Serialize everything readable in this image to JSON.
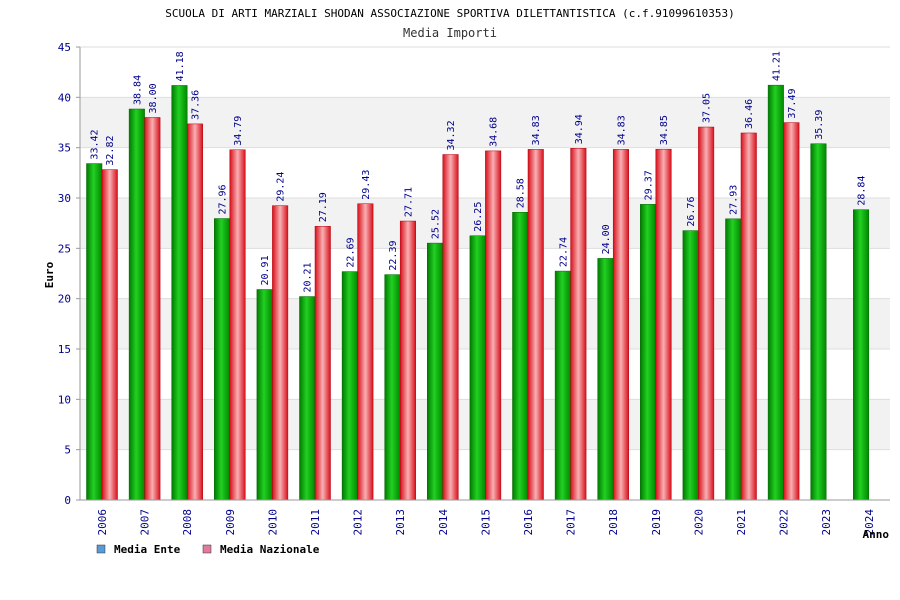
{
  "chart_data": {
    "type": "bar",
    "title": "SCUOLA DI ARTI MARZIALI SHODAN ASSOCIAZIONE SPORTIVA DILETTANTISTICA (c.f.91099610353)",
    "subtitle": "Media Importi",
    "xlabel": "Anno",
    "ylabel": "Euro",
    "ylim": [
      0,
      45
    ],
    "yticks": [
      "0",
      "5",
      "10",
      "15",
      "20",
      "25",
      "30",
      "35",
      "40",
      "45"
    ],
    "grid": true,
    "legend_position": "bottom-left",
    "categories": [
      "2006",
      "2007",
      "2008",
      "2009",
      "2010",
      "2011",
      "2012",
      "2013",
      "2014",
      "2015",
      "2016",
      "2017",
      "2018",
      "2019",
      "2020",
      "2021",
      "2022",
      "2023",
      "2024"
    ],
    "series": [
      {
        "name": "Media Ente",
        "color": "#00b000",
        "legend_color": "#5b9bd5",
        "values": [
          33.42,
          38.84,
          41.18,
          27.96,
          20.91,
          20.21,
          22.69,
          22.39,
          25.52,
          26.25,
          28.58,
          22.74,
          24.0,
          29.37,
          26.76,
          27.93,
          41.21,
          35.39,
          28.84
        ],
        "labels": [
          "33.42",
          "38.84",
          "41.18",
          "27.96",
          "20.91",
          "20.21",
          "22.69",
          "22.39",
          "25.52",
          "26.25",
          "28.58",
          "22.74",
          "24.00",
          "29.37",
          "26.76",
          "27.93",
          "41.21",
          "35.39",
          "28.84"
        ]
      },
      {
        "name": "Media Nazionale",
        "color": "#e8202a",
        "legend_color": "#e07aa0",
        "values": [
          32.82,
          38.0,
          37.36,
          34.79,
          29.24,
          27.19,
          29.43,
          27.71,
          34.32,
          34.68,
          34.83,
          34.94,
          34.83,
          34.85,
          37.05,
          36.46,
          37.49,
          null,
          null
        ],
        "labels": [
          "32.82",
          "38.00",
          "37.36",
          "34.79",
          "29.24",
          "27.19",
          "29.43",
          "27.71",
          "34.32",
          "34.68",
          "34.83",
          "34.94",
          "34.83",
          "34.85",
          "37.05",
          "36.46",
          "37.49",
          null,
          null
        ]
      }
    ]
  }
}
